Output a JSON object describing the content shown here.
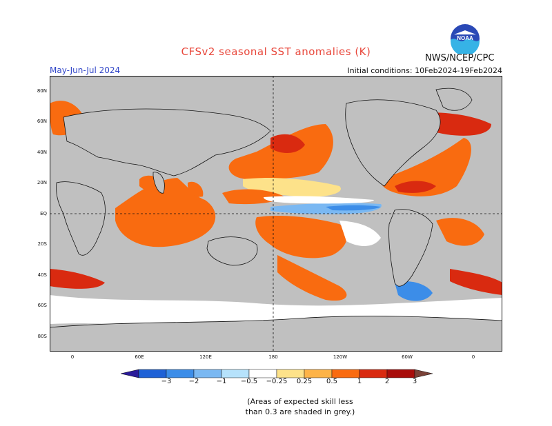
{
  "header": {
    "title": "CFSv2 seasonal SST anomalies (K)",
    "season": "May-Jun-Jul 2024",
    "initial_conditions": "Initial conditions: 10Feb2024-19Feb2024",
    "agency": "NWS/NCEP/CPC",
    "logo_icon": "noaa-logo-icon",
    "logo_text": "NOAA"
  },
  "map": {
    "lat_labels": [
      "80N",
      "60N",
      "40N",
      "20N",
      "EQ",
      "20S",
      "40S",
      "60S",
      "80S"
    ],
    "lon_labels": [
      "0",
      "60E",
      "120E",
      "180",
      "120W",
      "60W",
      "0"
    ],
    "colors": {
      "ocean_no_skill": "#c0c0c0",
      "land": "#c0c0c0",
      "neutral": "#ffffff"
    }
  },
  "legend": {
    "labels": [
      "−3",
      "−2",
      "−1",
      "−0.5",
      "−0.25",
      "0.25",
      "0.5",
      "1",
      "2",
      "3"
    ],
    "colors": [
      "#2a1b9a",
      "#1f62d6",
      "#3c8de8",
      "#7ab8f2",
      "#b6e2fb",
      "#ffffff",
      "#fde28a",
      "#fdb347",
      "#f96b10",
      "#d92a10",
      "#a80d0b",
      "#7a4238"
    ]
  },
  "notes": {
    "line1": "(Areas of expected skill less",
    "line2": "than 0.3 are shaded in grey.)"
  }
}
